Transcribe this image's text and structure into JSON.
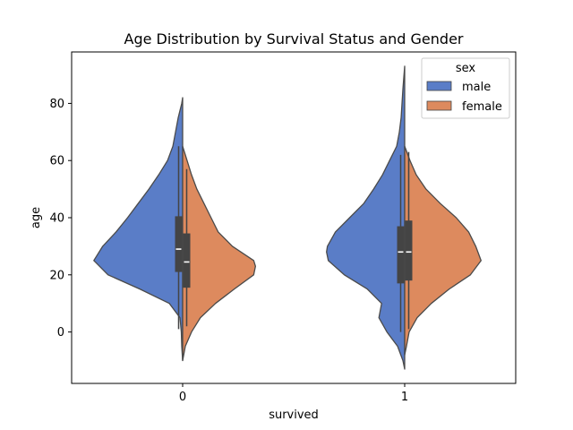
{
  "chart_data": {
    "type": "violin",
    "title": "Age Distribution by Survival Status and Gender",
    "xlabel": "survived",
    "ylabel": "age",
    "categories": [
      "0",
      "1"
    ],
    "ylim": [
      -18,
      98
    ],
    "yticks": [
      0,
      20,
      40,
      60,
      80
    ],
    "split": true,
    "legend": {
      "title": "sex",
      "position": "top-right",
      "entries": [
        "male",
        "female"
      ]
    },
    "series": [
      {
        "name": "male",
        "color": "#5a7dc7",
        "side": "left",
        "groups": [
          {
            "category": "0",
            "range": [
              -10,
              82
            ],
            "profile": [
              [
                -10,
                0.0
              ],
              [
                -5,
                0.01
              ],
              [
                0,
                0.015
              ],
              [
                5,
                0.03
              ],
              [
                10,
                0.15
              ],
              [
                15,
                0.48
              ],
              [
                20,
                0.84
              ],
              [
                25,
                1.0
              ],
              [
                30,
                0.9
              ],
              [
                35,
                0.75
              ],
              [
                40,
                0.62
              ],
              [
                45,
                0.5
              ],
              [
                50,
                0.38
              ],
              [
                55,
                0.27
              ],
              [
                60,
                0.17
              ],
              [
                65,
                0.11
              ],
              [
                70,
                0.08
              ],
              [
                75,
                0.05
              ],
              [
                80,
                0.01
              ],
              [
                82,
                0.0
              ]
            ],
            "box": {
              "q1": 21,
              "median": 29,
              "q3": 40.5,
              "whisker_low": 1,
              "whisker_high": 65
            }
          },
          {
            "category": "1",
            "range": [
              -13,
              93
            ],
            "profile": [
              [
                -13,
                0.0
              ],
              [
                -10,
                0.02
              ],
              [
                -5,
                0.08
              ],
              [
                0,
                0.2
              ],
              [
                5,
                0.29
              ],
              [
                10,
                0.26
              ],
              [
                15,
                0.42
              ],
              [
                20,
                0.68
              ],
              [
                25,
                0.86
              ],
              [
                28,
                0.88
              ],
              [
                30,
                0.87
              ],
              [
                35,
                0.78
              ],
              [
                40,
                0.62
              ],
              [
                45,
                0.46
              ],
              [
                50,
                0.35
              ],
              [
                55,
                0.25
              ],
              [
                60,
                0.17
              ],
              [
                65,
                0.09
              ],
              [
                70,
                0.06
              ],
              [
                75,
                0.04
              ],
              [
                80,
                0.03
              ],
              [
                85,
                0.02
              ],
              [
                93,
                0.0
              ]
            ],
            "box": {
              "q1": 17,
              "median": 28,
              "q3": 37,
              "whisker_low": 0,
              "whisker_high": 62
            }
          }
        ]
      },
      {
        "name": "female",
        "color": "#dd8a5e",
        "side": "right",
        "groups": [
          {
            "category": "0",
            "range": [
              -10,
              65
            ],
            "profile": [
              [
                -10,
                0.0
              ],
              [
                -5,
                0.03
              ],
              [
                0,
                0.1
              ],
              [
                5,
                0.2
              ],
              [
                10,
                0.37
              ],
              [
                15,
                0.58
              ],
              [
                20,
                0.8
              ],
              [
                23,
                0.82
              ],
              [
                25,
                0.8
              ],
              [
                30,
                0.56
              ],
              [
                35,
                0.4
              ],
              [
                40,
                0.32
              ],
              [
                45,
                0.24
              ],
              [
                50,
                0.16
              ],
              [
                55,
                0.1
              ],
              [
                60,
                0.05
              ],
              [
                65,
                0.0
              ]
            ],
            "box": {
              "q1": 15.5,
              "median": 24.5,
              "q3": 34.5,
              "whisker_low": 2,
              "whisker_high": 57
            }
          },
          {
            "category": "1",
            "range": [
              -8,
              65
            ],
            "profile": [
              [
                -8,
                0.0
              ],
              [
                -5,
                0.02
              ],
              [
                0,
                0.05
              ],
              [
                5,
                0.14
              ],
              [
                10,
                0.3
              ],
              [
                15,
                0.5
              ],
              [
                20,
                0.74
              ],
              [
                25,
                0.86
              ],
              [
                30,
                0.8
              ],
              [
                35,
                0.72
              ],
              [
                40,
                0.58
              ],
              [
                45,
                0.4
              ],
              [
                50,
                0.24
              ],
              [
                55,
                0.13
              ],
              [
                60,
                0.06
              ],
              [
                65,
                0.0
              ]
            ],
            "box": {
              "q1": 18,
              "median": 28,
              "q3": 39,
              "whisker_low": 1,
              "whisker_high": 63
            }
          }
        ]
      }
    ]
  }
}
